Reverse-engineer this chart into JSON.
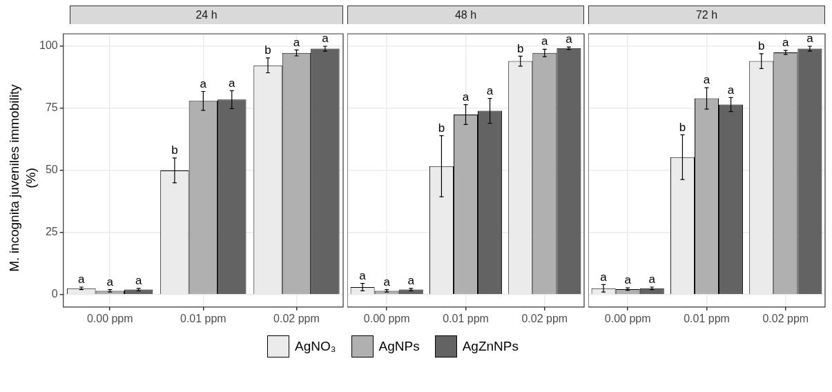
{
  "chart_data": [
    {
      "type": "bar",
      "title": "24 h",
      "ylabel": "M. incognita juveniles immobility (%)",
      "categories": [
        "0.00 ppm",
        "0.01 ppm",
        "0.02 ppm"
      ],
      "ylim": [
        -5,
        105
      ],
      "yticks": [
        0,
        25,
        50,
        75,
        100
      ],
      "grid": true,
      "legend": "bottom",
      "series": [
        {
          "name": "AgNO₃",
          "color": "#ebebeb",
          "values": [
            2.5,
            50,
            92.3
          ],
          "errors": [
            0.5,
            5,
            3
          ],
          "value_labels": [
            "a",
            "b",
            "b"
          ]
        },
        {
          "name": "AgNPs",
          "color": "#b0b0b0",
          "values": [
            1.5,
            78,
            97.3
          ],
          "errors": [
            0.5,
            3.8,
            1.2
          ],
          "value_labels": [
            "a",
            "a",
            "a"
          ]
        },
        {
          "name": "AgZnNPs",
          "color": "#636363",
          "values": [
            2,
            78.5,
            99
          ],
          "errors": [
            0.5,
            3.6,
            1
          ],
          "value_labels": [
            "a",
            "a",
            "a"
          ]
        }
      ]
    },
    {
      "type": "bar",
      "title": "48 h",
      "categories": [
        "0.00 ppm",
        "0.01 ppm",
        "0.02 ppm"
      ],
      "ylim": [
        -5,
        105
      ],
      "yticks": [
        0,
        25,
        50,
        75,
        100
      ],
      "grid": true,
      "tick_labels": "x",
      "series": [
        {
          "color": "#ebebeb",
          "values": [
            3,
            51.7,
            94
          ],
          "errors": [
            1.5,
            12.3,
            2
          ],
          "value_labels": [
            "a",
            "b",
            "b"
          ]
        },
        {
          "color": "#b0b0b0",
          "values": [
            1.5,
            72.5,
            97.3
          ],
          "errors": [
            0.5,
            4,
            1.5
          ],
          "value_labels": [
            "a",
            "a",
            "a"
          ]
        },
        {
          "color": "#636363",
          "values": [
            2,
            74,
            99.2
          ],
          "errors": [
            0.5,
            5,
            0.5
          ],
          "value_labels": [
            "a",
            "a",
            "a"
          ]
        }
      ]
    },
    {
      "type": "bar",
      "title": "72 h",
      "categories": [
        "0.00 ppm",
        "0.01 ppm",
        "0.02 ppm"
      ],
      "ylim": [
        -5,
        105
      ],
      "yticks": [
        0,
        25,
        50,
        75,
        100
      ],
      "grid": true,
      "tick_labels": "x",
      "series": [
        {
          "color": "#ebebeb",
          "values": [
            2.5,
            55.3,
            94
          ],
          "errors": [
            1.5,
            9,
            3
          ],
          "value_labels": [
            "a",
            "b",
            "b"
          ]
        },
        {
          "color": "#b0b0b0",
          "values": [
            2.2,
            79,
            97.5
          ],
          "errors": [
            0.5,
            4.3,
            0.8
          ],
          "value_labels": [
            "a",
            "a",
            "a"
          ]
        },
        {
          "color": "#636363",
          "values": [
            2.5,
            76.5,
            99
          ],
          "errors": [
            0.5,
            2.8,
            1
          ],
          "value_labels": [
            "a",
            "a",
            "a"
          ]
        }
      ]
    }
  ]
}
